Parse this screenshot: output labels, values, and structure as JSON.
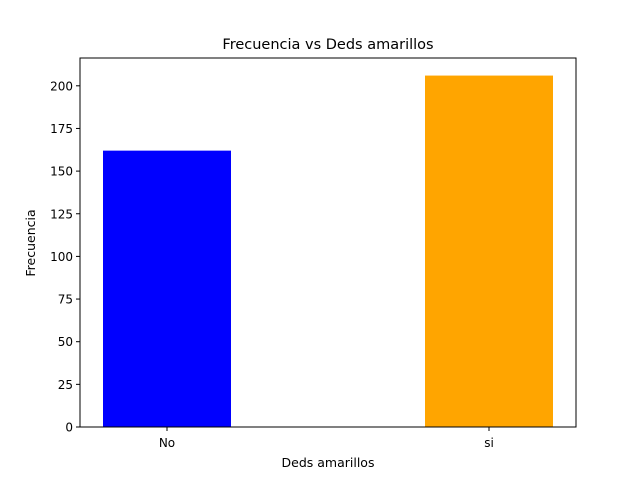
{
  "chart_data": {
    "type": "bar",
    "title": "Frecuencia vs Deds amarillos",
    "xlabel": "Deds amarillos",
    "ylabel": "Frecuencia",
    "categories": [
      "No",
      "si"
    ],
    "values": [
      162,
      206
    ],
    "colors": [
      "#0000ff",
      "#ffa500"
    ],
    "ylim": [
      0,
      216.3
    ],
    "yticks": [
      0,
      25,
      50,
      75,
      100,
      125,
      150,
      175,
      200
    ],
    "grid": false,
    "legend": "none"
  }
}
